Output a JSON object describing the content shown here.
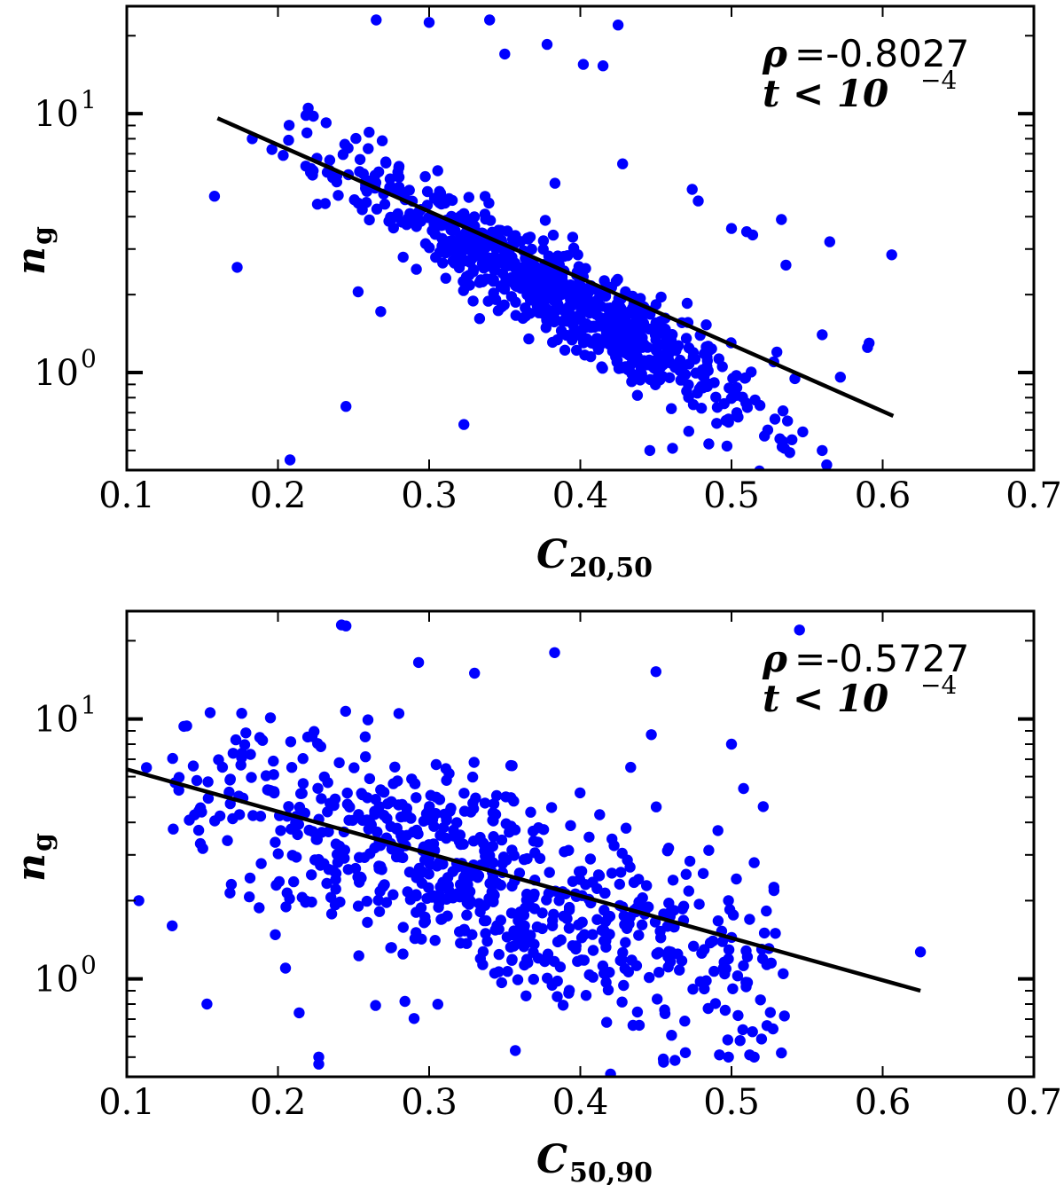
{
  "chart_data": [
    {
      "type": "scatter",
      "title": "",
      "xlabel": "C_20,50",
      "xlabel_main": "C",
      "xlabel_sub": "20,50",
      "ylabel": "n_g",
      "ylabel_main": "n",
      "ylabel_sub": "g",
      "xlim": [
        0.1,
        0.7
      ],
      "ylim": [
        0.42,
        26
      ],
      "yscale": "log",
      "xticks": [
        0.1,
        0.2,
        0.3,
        0.4,
        0.5,
        0.6,
        0.7
      ],
      "xtick_labels": [
        "0.1",
        "0.2",
        "0.3",
        "0.4",
        "0.5",
        "0.6",
        "0.7"
      ],
      "ytick_labels": [
        {
          "value": 1,
          "base": "10",
          "exp": "0"
        },
        {
          "value": 10,
          "base": "10",
          "exp": "1"
        }
      ],
      "annotation": {
        "rho_symbol": "ρ",
        "rho_text": "=-0.8027",
        "t_text": "t < 10",
        "t_exp": "−4"
      },
      "point_color": "#0000ff",
      "line_color": "#000000",
      "fit_line": {
        "x": [
          0.16,
          0.607
        ],
        "y": [
          9.6,
          0.68
        ]
      },
      "cluster": {
        "x0": 0.28,
        "x1": 0.48,
        "y0": 4.5,
        "y1": 1.0,
        "spread_x": 0.07,
        "sigma_log10": 0.09,
        "n": 780,
        "x_min": 0.19,
        "x_max": 0.55
      },
      "outliers": [
        {
          "x": 0.158,
          "y": 4.8
        },
        {
          "x": 0.173,
          "y": 2.55
        },
        {
          "x": 0.183,
          "y": 8.0
        },
        {
          "x": 0.208,
          "y": 0.46
        },
        {
          "x": 0.22,
          "y": 10.5
        },
        {
          "x": 0.245,
          "y": 0.74
        },
        {
          "x": 0.253,
          "y": 2.05
        },
        {
          "x": 0.268,
          "y": 1.72
        },
        {
          "x": 0.323,
          "y": 0.63
        },
        {
          "x": 0.3,
          "y": 22.5
        },
        {
          "x": 0.34,
          "y": 23.0
        },
        {
          "x": 0.35,
          "y": 17.0
        },
        {
          "x": 0.265,
          "y": 23.0
        },
        {
          "x": 0.378,
          "y": 18.5
        },
        {
          "x": 0.402,
          "y": 15.5
        },
        {
          "x": 0.415,
          "y": 15.3
        },
        {
          "x": 0.425,
          "y": 22.0
        },
        {
          "x": 0.428,
          "y": 6.4
        },
        {
          "x": 0.446,
          "y": 0.5
        },
        {
          "x": 0.461,
          "y": 0.51
        },
        {
          "x": 0.474,
          "y": 5.1
        },
        {
          "x": 0.485,
          "y": 0.53
        },
        {
          "x": 0.497,
          "y": 0.52
        },
        {
          "x": 0.51,
          "y": 3.5
        },
        {
          "x": 0.514,
          "y": 3.4
        },
        {
          "x": 0.524,
          "y": 0.6
        },
        {
          "x": 0.533,
          "y": 3.9
        },
        {
          "x": 0.536,
          "y": 2.6
        },
        {
          "x": 0.54,
          "y": 0.55
        },
        {
          "x": 0.56,
          "y": 1.4
        },
        {
          "x": 0.56,
          "y": 0.5
        },
        {
          "x": 0.563,
          "y": 0.44
        },
        {
          "x": 0.565,
          "y": 3.2
        },
        {
          "x": 0.572,
          "y": 0.96
        },
        {
          "x": 0.591,
          "y": 1.3
        },
        {
          "x": 0.59,
          "y": 1.25
        },
        {
          "x": 0.606,
          "y": 2.85
        },
        {
          "x": 0.478,
          "y": 4.6
        },
        {
          "x": 0.5,
          "y": 3.6
        },
        {
          "x": 0.53,
          "y": 1.2
        },
        {
          "x": 0.528,
          "y": 1.1
        },
        {
          "x": 0.535,
          "y": 0.51
        }
      ]
    },
    {
      "type": "scatter",
      "title": "",
      "xlabel": "C_50,90",
      "xlabel_main": "C",
      "xlabel_sub": "50,90",
      "ylabel": "n_g",
      "ylabel_main": "n",
      "ylabel_sub": "g",
      "xlim": [
        0.1,
        0.7
      ],
      "ylim": [
        0.42,
        26
      ],
      "yscale": "log",
      "xticks": [
        0.1,
        0.2,
        0.3,
        0.4,
        0.5,
        0.6,
        0.7
      ],
      "xtick_labels": [
        "0.1",
        "0.2",
        "0.3",
        "0.4",
        "0.5",
        "0.6",
        "0.7"
      ],
      "ytick_labels": [
        {
          "value": 1,
          "base": "10",
          "exp": "0"
        },
        {
          "value": 10,
          "base": "10",
          "exp": "1"
        }
      ],
      "annotation": {
        "rho_symbol": "ρ",
        "rho_text": "=-0.5727",
        "t_text": "t < 10",
        "t_exp": "−4"
      },
      "point_color": "#0000ff",
      "line_color": "#000000",
      "fit_line": {
        "x": [
          0.1,
          0.625
        ],
        "y": [
          6.4,
          0.9
        ]
      },
      "cluster": {
        "x0": 0.2,
        "x1": 0.48,
        "y0": 4.2,
        "y1": 1.2,
        "spread_x": 0.11,
        "sigma_log10": 0.2,
        "n": 720,
        "x_min": 0.13,
        "x_max": 0.535
      },
      "outliers": [
        {
          "x": 0.108,
          "y": 2.0
        },
        {
          "x": 0.113,
          "y": 6.5
        },
        {
          "x": 0.13,
          "y": 1.6
        },
        {
          "x": 0.153,
          "y": 0.8
        },
        {
          "x": 0.205,
          "y": 1.1
        },
        {
          "x": 0.214,
          "y": 0.74
        },
        {
          "x": 0.227,
          "y": 0.5
        },
        {
          "x": 0.227,
          "y": 0.47
        },
        {
          "x": 0.242,
          "y": 23.0
        },
        {
          "x": 0.245,
          "y": 22.8
        },
        {
          "x": 0.195,
          "y": 10.1
        },
        {
          "x": 0.28,
          "y": 10.5
        },
        {
          "x": 0.293,
          "y": 16.5
        },
        {
          "x": 0.33,
          "y": 15.0
        },
        {
          "x": 0.383,
          "y": 18.0
        },
        {
          "x": 0.45,
          "y": 15.2
        },
        {
          "x": 0.447,
          "y": 8.7
        },
        {
          "x": 0.545,
          "y": 22.0
        },
        {
          "x": 0.5,
          "y": 8.0
        },
        {
          "x": 0.508,
          "y": 5.4
        },
        {
          "x": 0.515,
          "y": 2.8
        },
        {
          "x": 0.521,
          "y": 4.6
        },
        {
          "x": 0.498,
          "y": 2.0
        },
        {
          "x": 0.357,
          "y": 0.53
        },
        {
          "x": 0.42,
          "y": 0.43
        },
        {
          "x": 0.492,
          "y": 0.51
        },
        {
          "x": 0.498,
          "y": 0.5
        },
        {
          "x": 0.512,
          "y": 0.51
        },
        {
          "x": 0.515,
          "y": 0.5
        },
        {
          "x": 0.535,
          "y": 0.72
        },
        {
          "x": 0.625,
          "y": 1.27
        },
        {
          "x": 0.52,
          "y": 1.3
        }
      ]
    }
  ]
}
